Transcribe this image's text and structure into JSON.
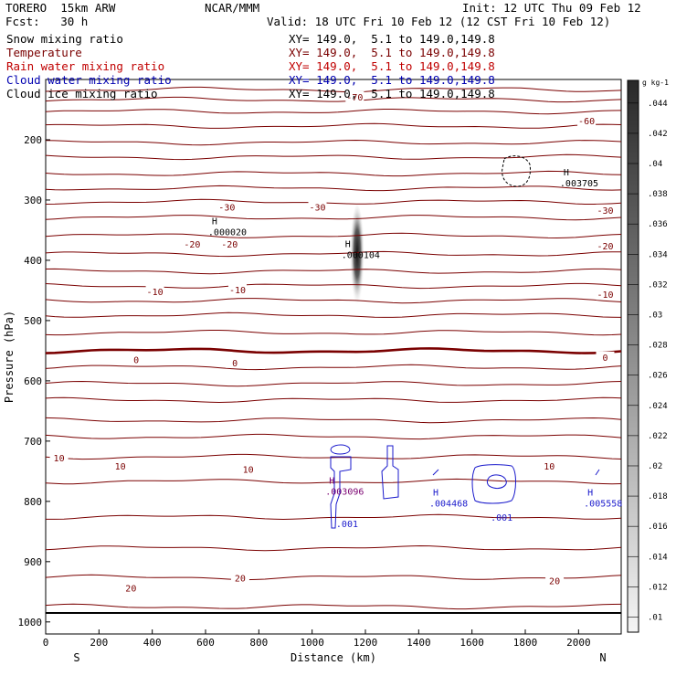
{
  "header": {
    "model": "TORERO  15km ARW",
    "org": "NCAR/MMM",
    "init": "Init: 12 UTC Thu 09 Feb 12",
    "fcst": "Fcst:   30 h",
    "valid": "Valid: 18 UTC Fri 10 Feb 12 (12 CST Fri 10 Feb 12)"
  },
  "fields": [
    {
      "name": "Snow mixing ratio",
      "xy": "XY= 149.0,  5.1 to 149.0,149.8",
      "color": "#000000"
    },
    {
      "name": "Temperature",
      "xy": "XY= 149.0,  5.1 to 149.0,149.8",
      "color": "#7a0000"
    },
    {
      "name": "Rain water mixing ratio",
      "xy": "XY= 149.0,  5.1 to 149.0,149.8",
      "color": "#c00000"
    },
    {
      "name": "Cloud water mixing ratio",
      "xy": "XY= 149.0,  5.1 to 149.0,149.8",
      "color": "#0000b0"
    },
    {
      "name": "Cloud ice mixing ratio",
      "xy": "XY= 149.0,  5.1 to 149.0,149.8",
      "color": "#000000"
    }
  ],
  "colors": {
    "temperature": "#7a0000",
    "cloud_water": "#1a1acc",
    "ice_label": "#7a0070"
  },
  "chart_data": {
    "type": "contour",
    "xlabel": "Distance (km)",
    "ylabel": "Pressure (hPa)",
    "xlim": [
      0,
      2160
    ],
    "ylim": [
      1020,
      100
    ],
    "x_ticks": [
      0,
      200,
      400,
      600,
      800,
      1000,
      1200,
      1400,
      1600,
      1800,
      2000
    ],
    "y_ticks": [
      200,
      300,
      400,
      500,
      600,
      700,
      800,
      900,
      1000
    ],
    "x_end_labels": {
      "left": "S",
      "right": "N"
    },
    "temperature_labels": [
      {
        "text": "-70",
        "x": 1160,
        "p": 130
      },
      {
        "text": "-60",
        "x": 2030,
        "p": 170
      },
      {
        "text": "-30",
        "x": 680,
        "p": 313
      },
      {
        "text": "-30",
        "x": 1020,
        "p": 313
      },
      {
        "text": "-30",
        "x": 2100,
        "p": 318
      },
      {
        "text": "-20",
        "x": 550,
        "p": 374
      },
      {
        "text": "-20",
        "x": 690,
        "p": 374
      },
      {
        "text": "-20",
        "x": 2100,
        "p": 377
      },
      {
        "text": "-10",
        "x": 410,
        "p": 453
      },
      {
        "text": "-10",
        "x": 720,
        "p": 450
      },
      {
        "text": "-10",
        "x": 2100,
        "p": 458
      },
      {
        "text": "0",
        "x": 340,
        "p": 566
      },
      {
        "text": "0",
        "x": 710,
        "p": 571
      },
      {
        "text": "0",
        "x": 2100,
        "p": 562
      },
      {
        "text": "10",
        "x": 50,
        "p": 729
      },
      {
        "text": "10",
        "x": 280,
        "p": 743
      },
      {
        "text": "10",
        "x": 760,
        "p": 748
      },
      {
        "text": "10",
        "x": 1890,
        "p": 743
      },
      {
        "text": "20",
        "x": 320,
        "p": 945
      },
      {
        "text": "20",
        "x": 730,
        "p": 928
      },
      {
        "text": "20",
        "x": 1910,
        "p": 933
      }
    ],
    "maxima": [
      {
        "letter": "H",
        "value": ".000020",
        "x": 610,
        "p": 345,
        "color": "#000000"
      },
      {
        "letter": "H",
        "value": ".000104",
        "x": 1110,
        "p": 383,
        "color": "#000000"
      },
      {
        "letter": "H",
        "value": ".003705",
        "x": 1930,
        "p": 264,
        "color": "#000000"
      },
      {
        "letter": "H",
        "value": ".003096",
        "x": 1050,
        "p": 775,
        "color": "#7a0070"
      },
      {
        "letter": "H",
        "value": ".004468",
        "x": 1440,
        "p": 795,
        "color": "#1a1acc"
      },
      {
        "letter": "H",
        "value": ".005558",
        "x": 2020,
        "p": 795,
        "color": "#1a1acc"
      }
    ],
    "contour_labels": [
      {
        "text": ".001",
        "x": 1090,
        "p": 843,
        "color": "#1a1acc"
      },
      {
        "text": ".001",
        "x": 1670,
        "p": 832,
        "color": "#1a1acc"
      }
    ],
    "colorbar": {
      "unit": "g kg-1",
      "levels": [
        0.01,
        0.012,
        0.014,
        0.016,
        0.018,
        0.02,
        0.022,
        0.024,
        0.026,
        0.028,
        0.03,
        0.032,
        0.034,
        0.036,
        0.038,
        0.04,
        0.042,
        0.044
      ],
      "level_labels": [
        ".01",
        ".012",
        ".014",
        ".016",
        ".018",
        ".02",
        ".022",
        ".024",
        ".026",
        ".028",
        ".03",
        ".032",
        ".034",
        ".036",
        ".038",
        ".04",
        ".042",
        ".044"
      ]
    }
  }
}
